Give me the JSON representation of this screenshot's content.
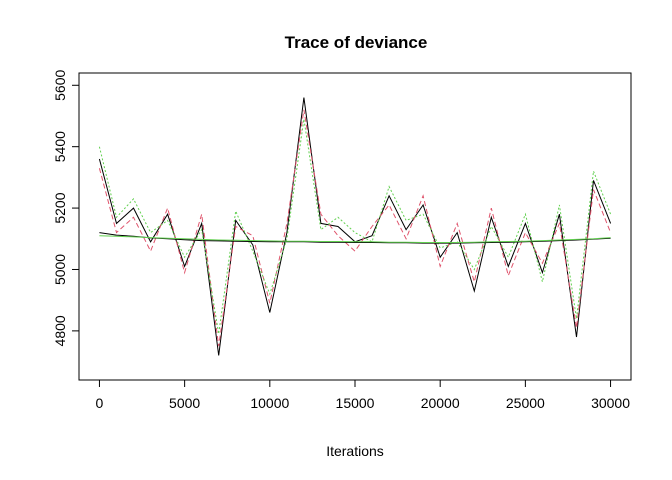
{
  "chart_data": {
    "type": "line",
    "title": "Trace of deviance",
    "xlabel": "Iterations",
    "ylabel": "",
    "xlim": [
      -1200,
      31200
    ],
    "ylim": [
      4640,
      5640
    ],
    "x_ticks": [
      0,
      5000,
      10000,
      15000,
      20000,
      25000,
      30000
    ],
    "y_ticks": [
      4800,
      5000,
      5200,
      5400,
      5600
    ],
    "x": [
      0,
      1000,
      2000,
      3000,
      4000,
      5000,
      6000,
      7000,
      8000,
      9000,
      10000,
      11000,
      12000,
      13000,
      14000,
      15000,
      16000,
      17000,
      18000,
      19000,
      20000,
      21000,
      22000,
      23000,
      24000,
      25000,
      26000,
      27000,
      28000,
      29000,
      30000
    ],
    "series": [
      {
        "name": "",
        "color": "#000000",
        "dash": "",
        "values": [
          5360,
          5150,
          5200,
          5090,
          5180,
          5010,
          5150,
          4720,
          5160,
          5080,
          4860,
          5120,
          5560,
          5150,
          5140,
          5090,
          5110,
          5240,
          5130,
          5210,
          5040,
          5120,
          4930,
          5170,
          5010,
          5150,
          4990,
          5180,
          4780,
          5290,
          5150
        ]
      },
      {
        "name": "",
        "color": "#df536b",
        "dash": "5,3",
        "values": [
          5330,
          5120,
          5170,
          5060,
          5200,
          4990,
          5180,
          4750,
          5140,
          5110,
          4890,
          5150,
          5520,
          5180,
          5110,
          5060,
          5140,
          5210,
          5100,
          5240,
          5010,
          5150,
          4960,
          5200,
          4980,
          5120,
          5020,
          5150,
          4810,
          5260,
          5120
        ]
      },
      {
        "name": "",
        "color": "#61d04f",
        "dash": "2,2",
        "values": [
          5400,
          5170,
          5230,
          5120,
          5160,
          5040,
          5130,
          4790,
          5190,
          5060,
          4920,
          5100,
          5490,
          5130,
          5170,
          5120,
          5090,
          5270,
          5160,
          5180,
          5070,
          5090,
          5000,
          5140,
          5040,
          5180,
          4960,
          5210,
          4840,
          5320,
          5180
        ]
      }
    ],
    "smooth": {
      "name": "",
      "color": "#000000",
      "values": [
        5120,
        5112,
        5108,
        5103,
        5100,
        5097,
        5094,
        5093,
        5092,
        5091,
        5090,
        5090,
        5090,
        5089,
        5089,
        5088,
        5088,
        5087,
        5087,
        5086,
        5086,
        5086,
        5087,
        5088,
        5089,
        5090,
        5092,
        5094,
        5096,
        5099,
        5102
      ]
    },
    "smooth_b": {
      "name": "",
      "color": "#61d04f",
      "values": [
        5110,
        5108,
        5106,
        5104,
        5102,
        5100,
        5098,
        5096,
        5095,
        5094,
        5093,
        5092,
        5092,
        5091,
        5091,
        5090,
        5090,
        5089,
        5089,
        5088,
        5088,
        5088,
        5089,
        5090,
        5091,
        5092,
        5094,
        5096,
        5098,
        5100,
        5104
      ]
    }
  }
}
